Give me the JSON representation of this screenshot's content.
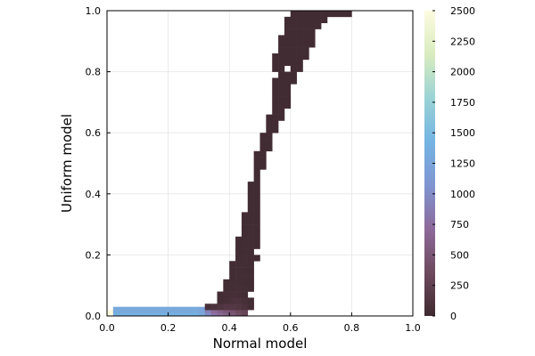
{
  "chart_data": {
    "type": "heatmap",
    "title": "",
    "xlabel": "Normal model",
    "ylabel": "Uniform model",
    "xlim": [
      0.0,
      1.0
    ],
    "ylim": [
      0.0,
      1.0
    ],
    "x_ticks": [
      "0.0",
      "0.2",
      "0.4",
      "0.6",
      "0.8",
      "1.0"
    ],
    "y_ticks": [
      "0.0",
      "0.2",
      "0.4",
      "0.6",
      "0.8",
      "1.0"
    ],
    "grid": true,
    "bin_width": 0.02,
    "colorbar": {
      "range": [
        0,
        2500
      ],
      "ticks": [
        "0",
        "250",
        "500",
        "750",
        "1000",
        "1250",
        "1500",
        "1750",
        "2000",
        "2250",
        "2500"
      ],
      "colormap": [
        "#3f2a30",
        "#6e4a5e",
        "#8d6a9a",
        "#7f95d2",
        "#74b5e2",
        "#9bd3d5",
        "#d9ecbf",
        "#fdfbe0"
      ]
    },
    "cells_note_values_are_counts_per_bin": true,
    "rows": [
      {
        "y": 0.0,
        "x_from": 0.0,
        "counts": [
          2500,
          1400,
          1400,
          1400,
          1400,
          1400,
          1400,
          1400,
          1400,
          1400,
          1400,
          1400,
          1400,
          1400,
          1400,
          1300,
          1000,
          800,
          700,
          600,
          500,
          400,
          300
        ]
      },
      {
        "y": 0.01,
        "x_from": 0.02,
        "counts": [
          1300,
          1300,
          1300,
          1300,
          1300,
          1300,
          1300,
          1300,
          1300,
          1300,
          1300,
          1300,
          1300,
          1300,
          1250,
          900,
          700,
          600,
          500,
          450,
          350
        ]
      },
      {
        "y": 0.02,
        "x_from": 0.32,
        "counts": [
          60,
          90,
          120,
          150,
          160,
          140,
          90,
          40
        ]
      },
      {
        "y": 0.04,
        "x_from": 0.36,
        "counts": [
          40,
          60,
          80,
          90,
          70,
          40
        ]
      },
      {
        "y": 0.06,
        "x_from": 0.36,
        "counts": [
          30,
          50,
          60,
          50,
          30
        ]
      },
      {
        "y": 0.08,
        "x_from": 0.38,
        "counts": [
          30,
          40,
          50,
          40,
          30
        ]
      },
      {
        "y": 0.1,
        "x_from": 0.38,
        "counts": [
          30,
          40,
          40,
          30,
          20
        ]
      },
      {
        "y": 0.12,
        "x_from": 0.4,
        "counts": [
          30,
          40,
          40,
          30
        ]
      },
      {
        "y": 0.14,
        "x_from": 0.4,
        "counts": [
          30,
          40,
          30,
          20
        ]
      },
      {
        "y": 0.16,
        "x_from": 0.4,
        "counts": [
          20,
          40,
          40,
          30
        ]
      },
      {
        "y": 0.18,
        "x_from": 0.42,
        "counts": [
          30,
          40,
          30,
          20
        ]
      },
      {
        "y": 0.2,
        "x_from": 0.42,
        "counts": [
          30,
          30,
          30
        ]
      },
      {
        "y": 0.22,
        "x_from": 0.42,
        "counts": [
          20,
          30,
          30,
          20
        ]
      },
      {
        "y": 0.24,
        "x_from": 0.42,
        "counts": [
          20,
          30,
          30,
          20
        ]
      },
      {
        "y": 0.26,
        "x_from": 0.44,
        "counts": [
          20,
          30,
          20
        ]
      },
      {
        "y": 0.28,
        "x_from": 0.44,
        "counts": [
          20,
          30,
          20
        ]
      },
      {
        "y": 0.3,
        "x_from": 0.44,
        "counts": [
          20,
          20,
          20
        ]
      },
      {
        "y": 0.32,
        "x_from": 0.44,
        "counts": [
          20,
          20,
          20
        ]
      },
      {
        "y": 0.34,
        "x_from": 0.46,
        "counts": [
          20,
          20
        ]
      },
      {
        "y": 0.36,
        "x_from": 0.46,
        "counts": [
          20,
          20
        ]
      },
      {
        "y": 0.38,
        "x_from": 0.46,
        "counts": [
          20,
          20
        ]
      },
      {
        "y": 0.4,
        "x_from": 0.46,
        "counts": [
          20,
          20
        ]
      },
      {
        "y": 0.42,
        "x_from": 0.46,
        "counts": [
          20,
          20
        ]
      },
      {
        "y": 0.44,
        "x_from": 0.48,
        "counts": [
          20
        ]
      },
      {
        "y": 0.46,
        "x_from": 0.48,
        "counts": [
          20
        ]
      },
      {
        "y": 0.48,
        "x_from": 0.48,
        "counts": [
          20,
          20
        ]
      },
      {
        "y": 0.5,
        "x_from": 0.48,
        "counts": [
          20,
          20
        ]
      },
      {
        "y": 0.52,
        "x_from": 0.48,
        "counts": [
          20,
          20
        ]
      },
      {
        "y": 0.54,
        "x_from": 0.5,
        "counts": [
          20,
          20
        ]
      },
      {
        "y": 0.56,
        "x_from": 0.5,
        "counts": [
          20,
          20
        ]
      },
      {
        "y": 0.58,
        "x_from": 0.5,
        "counts": [
          20,
          20
        ]
      },
      {
        "y": 0.6,
        "x_from": 0.52,
        "counts": [
          20,
          20
        ]
      },
      {
        "y": 0.62,
        "x_from": 0.52,
        "counts": [
          20,
          20
        ]
      },
      {
        "y": 0.64,
        "x_from": 0.52,
        "counts": [
          20,
          20,
          20
        ]
      },
      {
        "y": 0.66,
        "x_from": 0.54,
        "counts": [
          20,
          20
        ]
      },
      {
        "y": 0.68,
        "x_from": 0.54,
        "counts": [
          20,
          20,
          20
        ]
      },
      {
        "y": 0.7,
        "x_from": 0.54,
        "counts": [
          20,
          20,
          20
        ]
      },
      {
        "y": 0.72,
        "x_from": 0.54,
        "counts": [
          20,
          20,
          20
        ]
      },
      {
        "y": 0.74,
        "x_from": 0.54,
        "counts": [
          20,
          20,
          20
        ]
      },
      {
        "y": 0.76,
        "x_from": 0.54,
        "counts": [
          20,
          20,
          20,
          20
        ]
      },
      {
        "y": 0.78,
        "x_from": 0.56,
        "counts": [
          20,
          20,
          20
        ]
      },
      {
        "y": 0.8,
        "x_from": 0.54,
        "counts": [
          20,
          20,
          0,
          20,
          20
        ]
      },
      {
        "y": 0.82,
        "x_from": 0.54,
        "counts": [
          20,
          20,
          20,
          20,
          20
        ]
      },
      {
        "y": 0.84,
        "x_from": 0.54,
        "counts": [
          20,
          20,
          20,
          20,
          20,
          20
        ]
      },
      {
        "y": 0.86,
        "x_from": 0.56,
        "counts": [
          20,
          20,
          20,
          20,
          20
        ]
      },
      {
        "y": 0.88,
        "x_from": 0.56,
        "counts": [
          20,
          20,
          20,
          20,
          20,
          20
        ]
      },
      {
        "y": 0.9,
        "x_from": 0.56,
        "counts": [
          20,
          20,
          20,
          20,
          20,
          20
        ]
      },
      {
        "y": 0.92,
        "x_from": 0.58,
        "counts": [
          20,
          20,
          20,
          20,
          20
        ]
      },
      {
        "y": 0.94,
        "x_from": 0.58,
        "counts": [
          20,
          20,
          20,
          20,
          20,
          20
        ]
      },
      {
        "y": 0.96,
        "x_from": 0.58,
        "counts": [
          20,
          20,
          20,
          20,
          20,
          20,
          20
        ]
      },
      {
        "y": 0.98,
        "x_from": 0.6,
        "counts": [
          20,
          20,
          20,
          20,
          20,
          20,
          20,
          20,
          20,
          20
        ]
      }
    ]
  }
}
